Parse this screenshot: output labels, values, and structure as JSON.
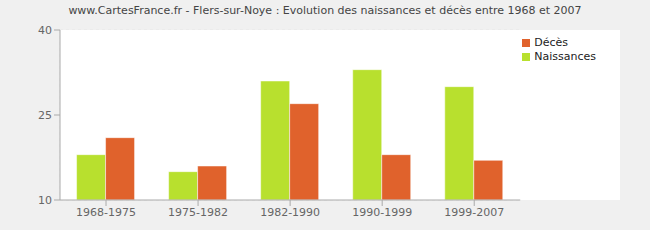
{
  "chart_data": {
    "type": "bar",
    "title": "www.CartesFrance.fr - Flers-sur-Noye : Evolution des naissances et décès entre 1968 et 2007",
    "categories": [
      "1968-1975",
      "1975-1982",
      "1982-1990",
      "1990-1999",
      "1999-2007"
    ],
    "series": [
      {
        "name": "Naissances",
        "color": "#b8e02e",
        "values": [
          18,
          15,
          31,
          33,
          30
        ]
      },
      {
        "name": "Décès",
        "color": "#e0622c",
        "values": [
          21,
          16,
          27,
          18,
          17
        ]
      }
    ],
    "ylim": [
      10,
      40
    ],
    "yticks": [
      10,
      25,
      40
    ],
    "grid": true,
    "legend": "upper right"
  }
}
